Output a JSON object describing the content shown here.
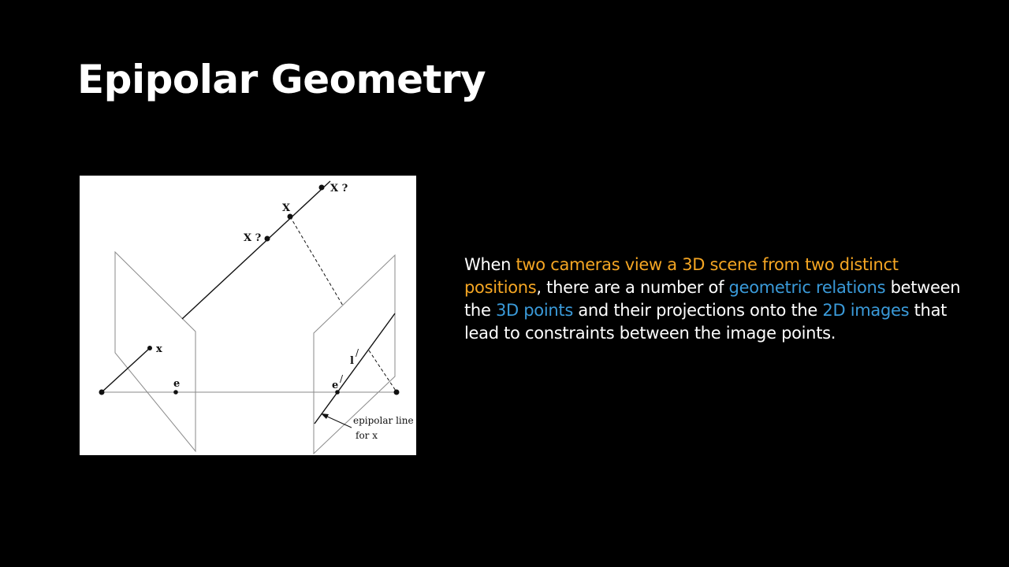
{
  "slide": {
    "title": "Epipolar Geometry",
    "body": [
      {
        "text": "When ",
        "style": "normal"
      },
      {
        "text": "two cameras view a 3D scene from two distinct positions",
        "style": "orange"
      },
      {
        "text": ", there are a number of ",
        "style": "normal"
      },
      {
        "text": "geometric relations",
        "style": "blue"
      },
      {
        "text": " between the ",
        "style": "normal"
      },
      {
        "text": "3D points",
        "style": "blue"
      },
      {
        "text": " and their projections onto the ",
        "style": "normal"
      },
      {
        "text": "2D images",
        "style": "blue"
      },
      {
        "text": " that lead to constraints between the image points.",
        "style": "normal"
      }
    ],
    "colors": {
      "orange": "#f5a623",
      "blue": "#3a9ad9",
      "background": "#000000",
      "text": "#ffffff"
    }
  },
  "figure": {
    "labels": {
      "x_top": "X ?",
      "x_mid": "X",
      "x_low": "X ?",
      "x_point": "x",
      "e_left": "e",
      "e_right": "e",
      "e_right_prime": "/",
      "l_prime": "l",
      "l_prime_mark": "/",
      "caption_line1": "epipolar line",
      "caption_line2": "for x"
    }
  }
}
